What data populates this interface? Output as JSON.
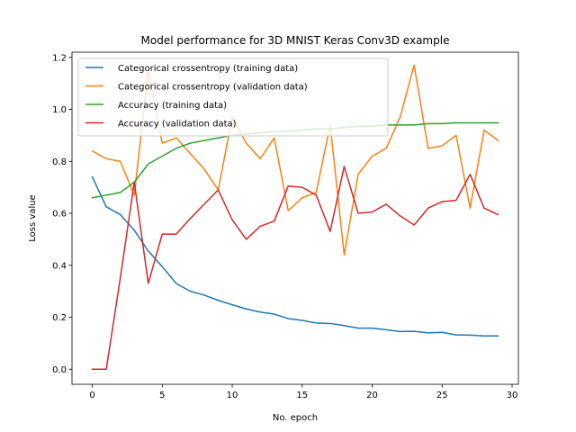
{
  "chart_data": {
    "type": "line",
    "title": "Model performance for 3D MNIST Keras Conv3D example",
    "xlabel": "No. epoch",
    "ylabel": "Loss value",
    "xlim": [
      -1.45,
      30.45
    ],
    "ylim": [
      -0.058,
      1.22
    ],
    "xticks": [
      0,
      5,
      10,
      15,
      20,
      25,
      30
    ],
    "yticks": [
      0.0,
      0.2,
      0.4,
      0.6,
      0.8,
      1.0,
      1.2
    ],
    "xtick_labels": [
      "0",
      "5",
      "10",
      "15",
      "20",
      "25",
      "30"
    ],
    "ytick_labels": [
      "0.0",
      "0.2",
      "0.4",
      "0.6",
      "0.8",
      "1.0",
      "1.2"
    ],
    "grid": false,
    "legend_position": "top-left",
    "x": [
      0,
      1,
      2,
      3,
      4,
      5,
      6,
      7,
      8,
      9,
      10,
      11,
      12,
      13,
      14,
      15,
      16,
      17,
      18,
      19,
      20,
      21,
      22,
      23,
      24,
      25,
      26,
      27,
      28,
      29
    ],
    "series": [
      {
        "name": "Categorical crossentropy (training data)",
        "color": "#1f77b4",
        "values": [
          0.74,
          0.625,
          0.595,
          0.535,
          0.455,
          0.395,
          0.33,
          0.3,
          0.285,
          0.265,
          0.248,
          0.232,
          0.22,
          0.212,
          0.195,
          0.188,
          0.178,
          0.176,
          0.168,
          0.158,
          0.158,
          0.152,
          0.145,
          0.146,
          0.14,
          0.142,
          0.132,
          0.131,
          0.128,
          0.128
        ]
      },
      {
        "name": "Categorical crossentropy (validation data)",
        "color": "#ff7f0e",
        "values": [
          0.84,
          0.81,
          0.8,
          0.67,
          1.15,
          0.87,
          0.89,
          0.83,
          0.77,
          0.69,
          0.97,
          0.87,
          0.81,
          0.89,
          0.61,
          0.66,
          0.68,
          0.94,
          0.44,
          0.75,
          0.82,
          0.85,
          0.97,
          1.17,
          0.85,
          0.86,
          0.9,
          0.62,
          0.92,
          0.88
        ]
      },
      {
        "name": "Accuracy (training data)",
        "color": "#2ca02c",
        "values": [
          0.66,
          0.67,
          0.68,
          0.72,
          0.79,
          0.82,
          0.85,
          0.87,
          0.88,
          0.89,
          0.9,
          0.905,
          0.91,
          0.915,
          0.915,
          0.92,
          0.925,
          0.925,
          0.93,
          0.935,
          0.935,
          0.94,
          0.94,
          0.94,
          0.945,
          0.945,
          0.948,
          0.948,
          0.948,
          0.948
        ]
      },
      {
        "name": "Accuracy (validation data)",
        "color": "#d62728",
        "values": [
          0.0,
          0.0,
          0.35,
          0.72,
          0.33,
          0.52,
          0.52,
          0.58,
          0.635,
          0.69,
          0.575,
          0.5,
          0.55,
          0.57,
          0.705,
          0.7,
          0.67,
          0.53,
          0.78,
          0.6,
          0.605,
          0.635,
          0.59,
          0.555,
          0.62,
          0.645,
          0.65,
          0.75,
          0.62,
          0.595
        ]
      }
    ]
  }
}
